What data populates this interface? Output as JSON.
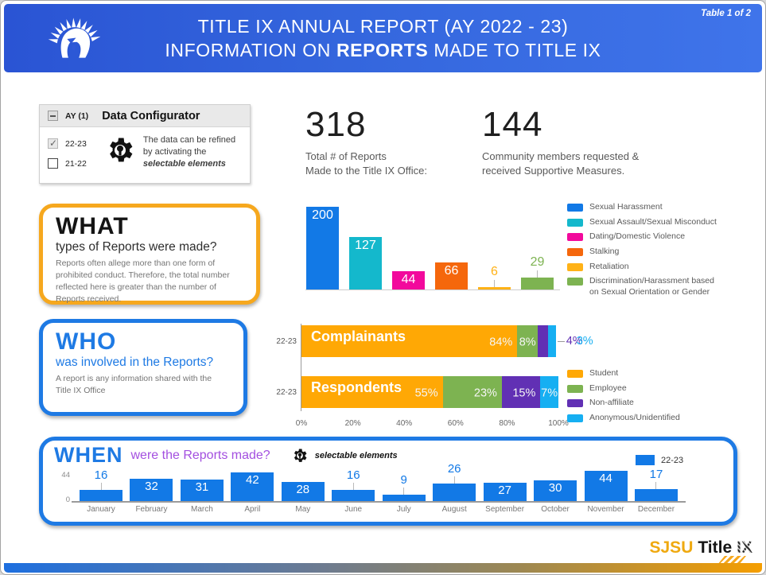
{
  "header": {
    "badge": "Table 1 of 2",
    "line1": "TITLE IX ANNUAL REPORT (AY 2022 - 23)",
    "line2_pre": "INFORMATION ON ",
    "line2_bold": "REPORTS",
    "line2_post": " MADE TO TITLE IX"
  },
  "configurator": {
    "ay_label": "AY (1)",
    "title": "Data Configurator",
    "options": [
      {
        "label": "22-23",
        "checked": true
      },
      {
        "label": "21-22",
        "checked": false
      }
    ],
    "note_pre": "The data can be refined by activating the ",
    "note_bold": "selectable elements"
  },
  "stats": [
    {
      "value": "318",
      "label": "Total # of Reports\nMade to the Title IX Office:"
    },
    {
      "value": "144",
      "label": "Community members requested &\nreceived Supportive Measures."
    }
  ],
  "sections": {
    "what": {
      "title": "WHAT",
      "subtitle": "types of Reports were made?",
      "body": "Reports often allege more than one form of prohibited conduct. Therefore, the total number reflected here is greater than the number of Reports received."
    },
    "who": {
      "title": "WHO",
      "subtitle": "was involved in the Reports?",
      "body": "A report is any information shared with the\nTitle IX Office"
    },
    "when": {
      "title": "WHEN",
      "subtitle": "were the Reports made?",
      "note": "selectable elements",
      "legend_label": "22-23"
    }
  },
  "footer": {
    "brand_gold": "SJSU",
    "brand_black": "Title",
    "brand_ix": "IX"
  },
  "colors": {
    "accent_blue": "#1e7ae4",
    "accent_orange": "#f6a81e",
    "bar_blue": "#1279e6",
    "when_subtitle_purple": "#a34fe0",
    "footer_gold": "#efa910"
  },
  "chart_data": [
    {
      "id": "what-types-of-reports",
      "type": "bar",
      "title": "WHAT types of Reports were made?",
      "categories": [
        "Sexual Harassment",
        "Sexual Assault/Sexual Misconduct",
        "Dating/Domestic Violence",
        "Stalking",
        "Retaliation",
        "Discrimination/Harassment based\non Sexual Orientation or Gender"
      ],
      "values": [
        200,
        127,
        44,
        66,
        6,
        29
      ],
      "colors": [
        "#1279e6",
        "#14b8cc",
        "#f2099c",
        "#f5670c",
        "#ffb217",
        "#7db351"
      ],
      "label_above": [
        false,
        false,
        false,
        false,
        true,
        true
      ],
      "ylim": [
        0,
        200
      ],
      "grid": false,
      "legend_position": "right"
    },
    {
      "id": "who-involved",
      "type": "stacked-bar-horizontal",
      "title": "WHO was involved in the Reports?",
      "categories": [
        "Complainants",
        "Respondents"
      ],
      "category_axis_labels": [
        "22-23",
        "22-23"
      ],
      "series": [
        {
          "name": "Student",
          "color": "#ffa805",
          "values": [
            84,
            55
          ]
        },
        {
          "name": "Employee",
          "color": "#7db351",
          "values": [
            8,
            23
          ]
        },
        {
          "name": "Non-affiliate",
          "color": "#6130b4",
          "values": [
            4,
            15
          ]
        },
        {
          "name": "Anonymous/Unidentified",
          "color": "#16aff2",
          "values": [
            3,
            7
          ]
        }
      ],
      "value_suffix": "%",
      "x_ticks": [
        "0%",
        "20%",
        "40%",
        "60%",
        "80%",
        "100%"
      ],
      "xlim": [
        0,
        100
      ],
      "legend_position": "right"
    },
    {
      "id": "when-reports-made",
      "type": "bar",
      "title": "WHEN were the Reports made?",
      "series_name": "22-23",
      "categories": [
        "January",
        "February",
        "March",
        "April",
        "May",
        "June",
        "July",
        "August",
        "September",
        "October",
        "November",
        "December"
      ],
      "values": [
        16,
        32,
        31,
        42,
        28,
        16,
        9,
        26,
        27,
        30,
        44,
        17
      ],
      "color": "#1279e6",
      "label_above": [
        true,
        false,
        false,
        false,
        false,
        true,
        true,
        true,
        false,
        false,
        false,
        true
      ],
      "y_ticks": [
        0,
        44
      ],
      "ylim": [
        0,
        44
      ],
      "grid": false
    }
  ]
}
